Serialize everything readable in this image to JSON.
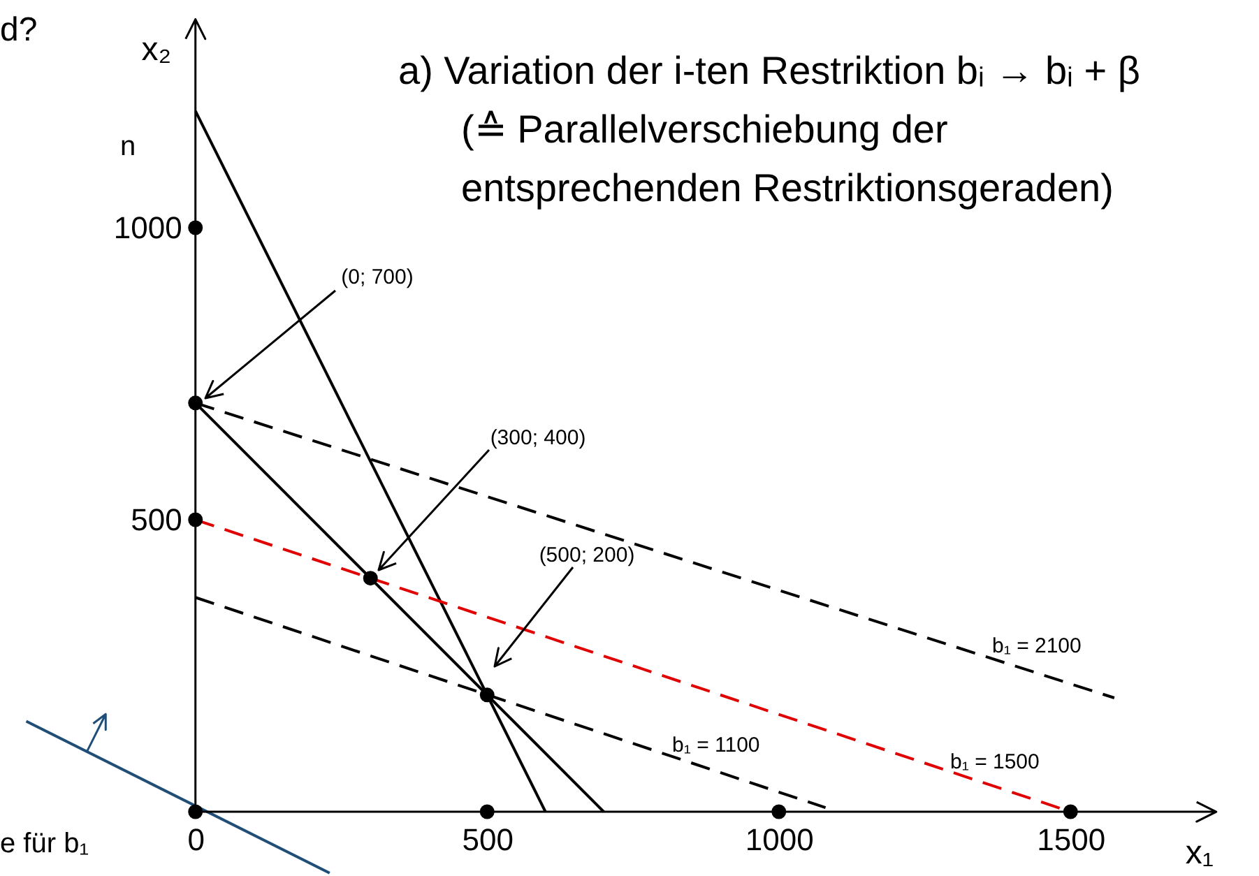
{
  "chart_data": {
    "type": "line",
    "title": "a) Variation der i-ten Restriktion bᵢ → bᵢ + β (≙ Parallelverschiebung der entsprechenden Restriktionsgeraden)",
    "xlabel": "x₁",
    "ylabel": "x₂",
    "xlim": [
      -335,
      1823
    ],
    "ylim": [
      -110,
      1390
    ],
    "xticks": [
      0,
      500,
      1000,
      1500
    ],
    "yticks": [
      500,
      1000
    ],
    "series": [
      {
        "color": "#000000",
        "line_style": "solid",
        "x": [
          0,
          600
        ],
        "values": [
          1200,
          0
        ]
      },
      {
        "color": "#000000",
        "line_style": "solid",
        "x": [
          0,
          700
        ],
        "values": [
          700,
          0
        ]
      },
      {
        "color": "#000000",
        "line_style": "dashed",
        "x": [
          0,
          1575
        ],
        "values": [
          700,
          195
        ]
      },
      {
        "color": "#e00000",
        "line_style": "dashed",
        "x": [
          0,
          1500
        ],
        "values": [
          500,
          0
        ]
      },
      {
        "color": "#000000",
        "line_style": "dashed",
        "x": [
          0,
          1080
        ],
        "values": [
          367,
          7
        ]
      },
      {
        "color": "#1f4e79",
        "line_style": "solid",
        "x": [
          -290,
          230
        ],
        "values": [
          155,
          -105
        ]
      },
      {
        "type": "scatter",
        "color": "#000000",
        "marker": "circle",
        "x": [
          0,
          500,
          1000,
          1500,
          0,
          0,
          0,
          300,
          500
        ],
        "values": [
          0,
          0,
          0,
          0,
          500,
          700,
          1000,
          400,
          200
        ]
      }
    ],
    "annotations": [
      "(0; 700)",
      "(300; 400)",
      "(500; 200)",
      "b₁ = 2100",
      "b₁ = 1100",
      "b₁ = 1500",
      "d?",
      "n",
      "e für b₁"
    ]
  }
}
